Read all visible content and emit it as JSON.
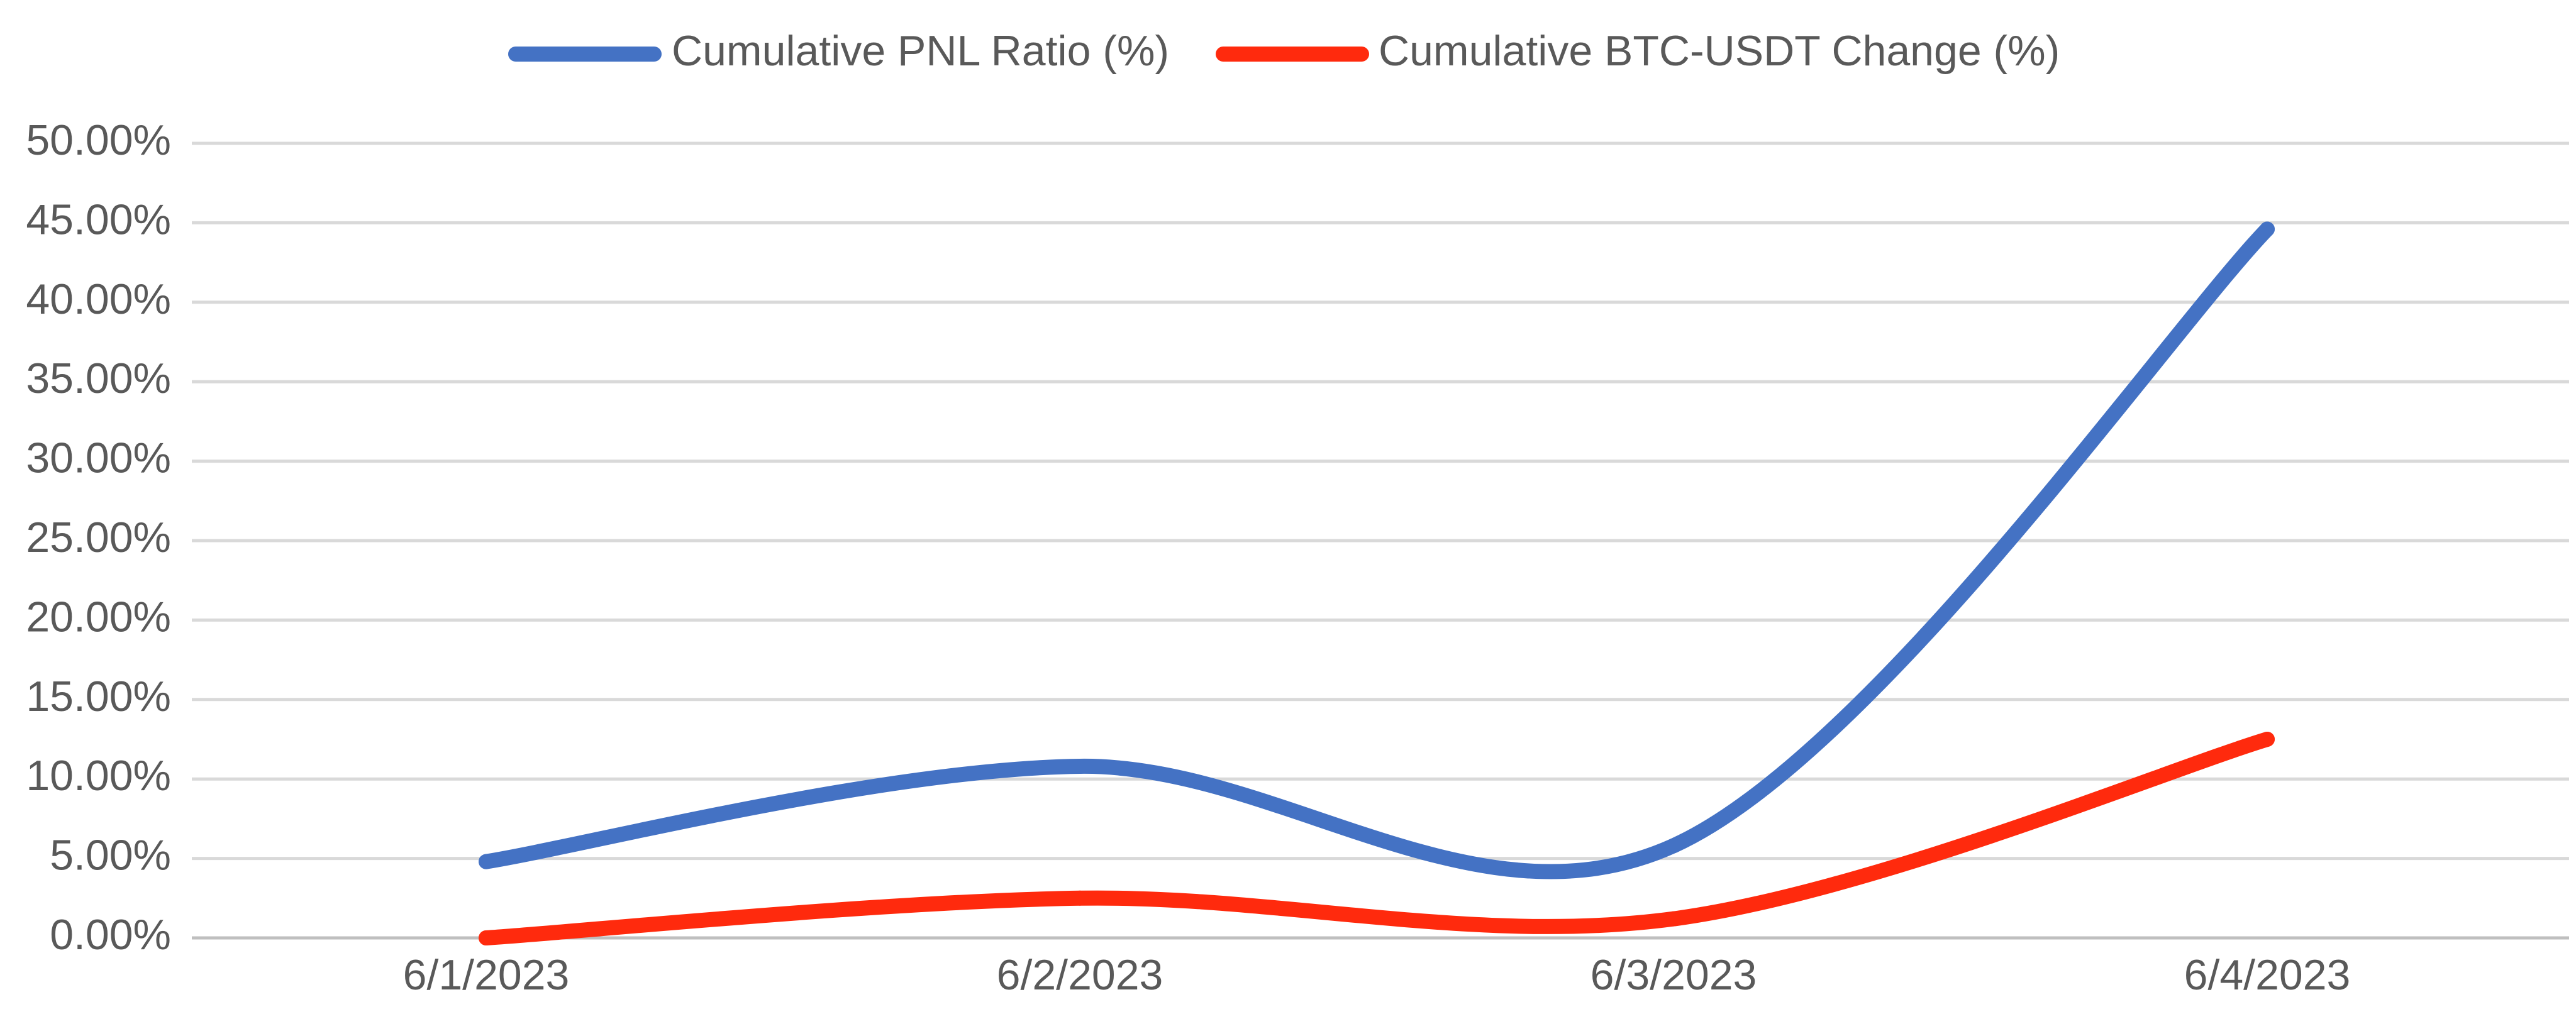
{
  "chart_data": {
    "type": "line",
    "title": "",
    "xlabel": "",
    "ylabel": "",
    "categories": [
      "6/1/2023",
      "6/2/2023",
      "6/3/2023",
      "6/4/2023"
    ],
    "ylim": [
      0,
      50
    ],
    "y_ticks": [
      0,
      5,
      10,
      15,
      20,
      25,
      30,
      35,
      40,
      45,
      50
    ],
    "y_tick_labels": [
      "0.00%",
      "5.00%",
      "10.00%",
      "15.00%",
      "20.00%",
      "25.00%",
      "30.00%",
      "35.00%",
      "40.00%",
      "45.00%",
      "50.00%"
    ],
    "grid": true,
    "smooth": true,
    "legend_position": "top",
    "series": [
      {
        "name": "Cumulative PNL Ratio (%)",
        "values": [
          4.8,
          10.8,
          5.8,
          44.6
        ],
        "color": "#4472C4"
      },
      {
        "name": "Cumulative BTC-USDT Change (%)",
        "values": [
          0.0,
          2.5,
          1.2,
          12.5
        ],
        "color": "#FF2A0D"
      }
    ]
  }
}
